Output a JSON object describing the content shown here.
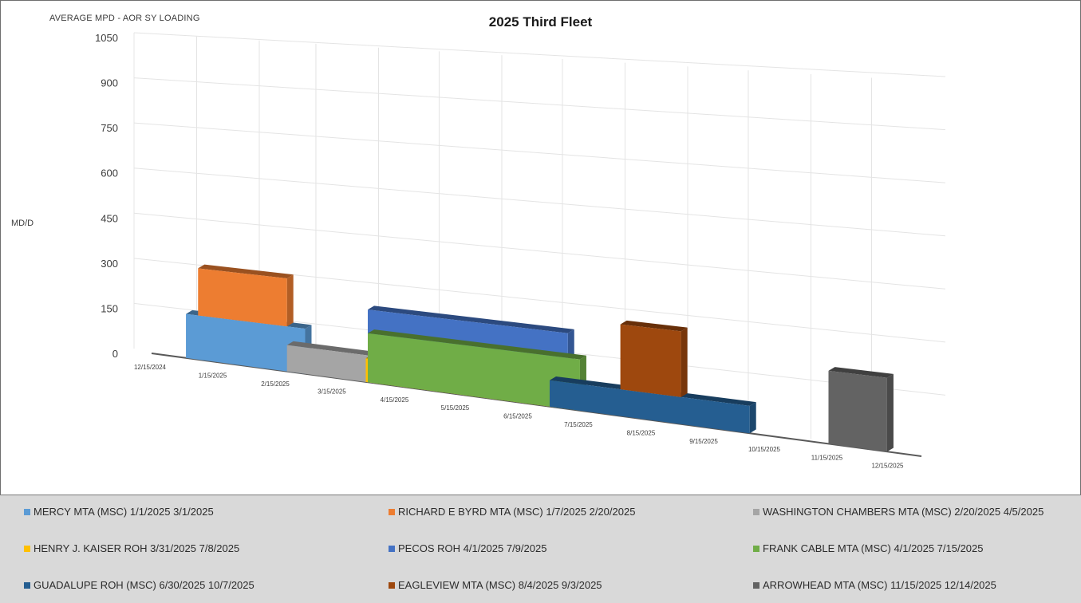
{
  "chart_data": {
    "type": "area",
    "title": "2025 Third Fleet",
    "ylabel_top": "AVERAGE MPD - AOR SY LOADING",
    "ylabel": "MD/D",
    "ylim": [
      0,
      1050
    ],
    "yticks": [
      0,
      150,
      300,
      450,
      600,
      750,
      900,
      1050
    ],
    "x_type": "date",
    "xlim": [
      "2024-12-15",
      "2025-12-31"
    ],
    "xticks": [
      "2024-12-15",
      "2025-01-15",
      "2025-02-15",
      "2025-03-15",
      "2025-04-15",
      "2025-05-15",
      "2025-06-15",
      "2025-07-15",
      "2025-08-15",
      "2025-09-15",
      "2025-10-15",
      "2025-11-15",
      "2025-12-15"
    ],
    "xtick_labels": [
      "12/15/2024",
      "1/15/2025",
      "2/15/2025",
      "3/15/2025",
      "4/15/2025",
      "5/15/2025",
      "6/15/2025",
      "7/15/2025",
      "8/15/2025",
      "9/15/2025",
      "10/15/2025",
      "11/15/2025",
      "12/15/2025"
    ],
    "grid": true,
    "legend_position": "bottom",
    "series": [
      {
        "name": "MERCY MTA (MSC) 1/1/2025 3/1/2025",
        "color": "#5b9bd5",
        "start": "2025-01-01",
        "end": "2025-03-01",
        "value": 145
      },
      {
        "name": "RICHARD E BYRD MTA (MSC) 1/7/2025 2/20/2025",
        "color": "#ed7d31",
        "start": "2025-01-07",
        "end": "2025-02-20",
        "value": 155
      },
      {
        "name": "WASHINGTON CHAMBERS MTA (MSC) 2/20/2025 4/5/2025",
        "color": "#a5a5a5",
        "start": "2025-02-20",
        "end": "2025-04-05",
        "value": 85
      },
      {
        "name": "HENRY J. KAISER ROH 3/31/2025 7/8/2025",
        "color": "#ffc000",
        "start": "2025-03-31",
        "end": "2025-07-08",
        "value": 75
      },
      {
        "name": "PECOS ROH 4/1/2025 7/9/2025",
        "color": "#4472c4",
        "start": "2025-04-01",
        "end": "2025-07-09",
        "value": 155
      },
      {
        "name": "FRANK CABLE MTA (MSC) 4/1/2025 7/15/2025",
        "color": "#70ad47",
        "start": "2025-04-01",
        "end": "2025-07-15",
        "value": 155
      },
      {
        "name": "GUADALUPE ROH (MSC) 6/30/2025 10/7/2025",
        "color": "#255e91",
        "start": "2025-06-30",
        "end": "2025-10-07",
        "value": 80
      },
      {
        "name": "EAGLEVIEW MTA (MSC) 8/4/2025 9/3/2025",
        "color": "#9e480e",
        "start": "2025-08-04",
        "end": "2025-09-03",
        "value": 195
      },
      {
        "name": "ARROWHEAD MTA (MSC) 11/15/2025 12/14/2025",
        "color": "#636363",
        "start": "2025-11-15",
        "end": "2025-12-14",
        "value": 210
      }
    ]
  }
}
